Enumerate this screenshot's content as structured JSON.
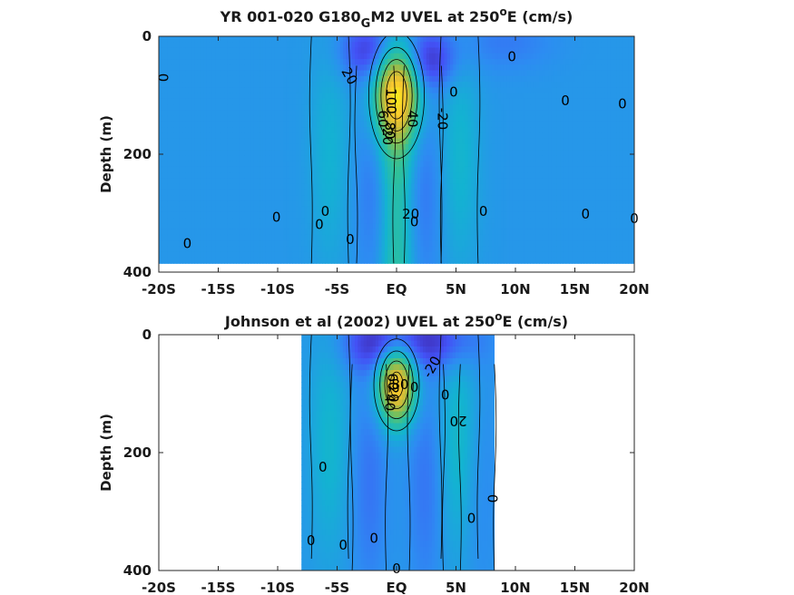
{
  "chart_data": [
    {
      "type": "heatmap",
      "title_main": "YR 001-020 G180",
      "title_sub": "G",
      "title_rest": "M2 UVEL at 250",
      "title_sup": "o",
      "title_end": "E (cm/s)",
      "ylabel": "Depth (m)",
      "xlim": [
        -20,
        20
      ],
      "ylim": [
        400,
        0
      ],
      "x_ticks": [
        -20,
        -15,
        -10,
        -5,
        0,
        5,
        10,
        15,
        20
      ],
      "x_tick_labels": [
        "-20S",
        "-15S",
        "-10S",
        "-5S",
        "EQ",
        "5N",
        "10N",
        "15N",
        "20N"
      ],
      "y_ticks": [
        0,
        200,
        400
      ],
      "y_tick_labels": [
        "0",
        "200",
        "400"
      ],
      "data_x_range": [
        -20,
        20
      ],
      "data_depth_max": 385,
      "contour_levels_cm_s": [
        -20,
        0,
        20,
        40,
        60,
        80,
        100
      ],
      "contour_labels": [
        {
          "x": -19.7,
          "depth": 70,
          "text": "0",
          "rot": 90
        },
        {
          "x": -4.0,
          "depth": 68,
          "text": "20",
          "rot": 60
        },
        {
          "x": 4.8,
          "depth": 95,
          "text": "0",
          "rot": 0
        },
        {
          "x": 9.7,
          "depth": 35,
          "text": "0",
          "rot": 0
        },
        {
          "x": 14.2,
          "depth": 110,
          "text": "0",
          "rot": 0
        },
        {
          "x": 19.0,
          "depth": 115,
          "text": "0",
          "rot": 0
        },
        {
          "x": -0.5,
          "depth": 110,
          "text": "100",
          "rot": 90
        },
        {
          "x": -1.2,
          "depth": 140,
          "text": "60",
          "rot": 90
        },
        {
          "x": -0.6,
          "depth": 160,
          "text": "80",
          "rot": 90
        },
        {
          "x": 1.3,
          "depth": 140,
          "text": "40",
          "rot": 90
        },
        {
          "x": 3.8,
          "depth": 140,
          "text": "-20",
          "rot": 90
        },
        {
          "x": -0.8,
          "depth": 170,
          "text": "20",
          "rot": 90
        },
        {
          "x": 7.3,
          "depth": 298,
          "text": "0",
          "rot": 0
        },
        {
          "x": 15.9,
          "depth": 302,
          "text": "0",
          "rot": 0
        },
        {
          "x": 20.0,
          "depth": 310,
          "text": "0",
          "rot": 0
        },
        {
          "x": -10.1,
          "depth": 308,
          "text": "0",
          "rot": 0
        },
        {
          "x": -6.5,
          "depth": 320,
          "text": "0",
          "rot": 0
        },
        {
          "x": -6.0,
          "depth": 298,
          "text": "0",
          "rot": 0
        },
        {
          "x": -17.6,
          "depth": 352,
          "text": "0",
          "rot": 0
        },
        {
          "x": -3.9,
          "depth": 345,
          "text": "0",
          "rot": 0
        },
        {
          "x": 1.2,
          "depth": 302,
          "text": "20",
          "rot": 0
        },
        {
          "x": 1.5,
          "depth": 315,
          "text": "0",
          "rot": 0
        }
      ],
      "features": [
        {
          "kind": "jet",
          "x": 0,
          "depth": 100,
          "width_deg": 1.3,
          "depth_sigma": 60,
          "speed": 100
        },
        {
          "kind": "jet_deep",
          "x": 0,
          "depth": 280,
          "width_deg": 1.0,
          "speed": 30
        },
        {
          "kind": "westward",
          "x": -2.2,
          "depth": 25,
          "width_deg": 1.8,
          "speed": -30
        },
        {
          "kind": "westward",
          "x": 2.8,
          "depth": 40,
          "width_deg": 1.6,
          "speed": -30
        },
        {
          "kind": "westward",
          "x": 9.0,
          "depth": 10,
          "width_deg": 3.0,
          "speed": -10
        },
        {
          "kind": "westward_band",
          "x": -1.8,
          "depth": 250,
          "width_deg": 1.2,
          "speed": -12
        },
        {
          "kind": "westward_band",
          "x": 2.2,
          "depth": 250,
          "width_deg": 1.2,
          "speed": -12
        },
        {
          "kind": "eastward_band",
          "x": 5.3,
          "depth": 200,
          "width_deg": 1.2,
          "speed": 14
        },
        {
          "kind": "eastward_band",
          "x": -5.6,
          "depth": 200,
          "width_deg": 1.2,
          "speed": 12
        }
      ]
    },
    {
      "type": "heatmap",
      "title_main": "Johnson et al (2002) UVEL at 250",
      "title_sup": "o",
      "title_end": "E (cm/s)",
      "ylabel": "Depth (m)",
      "xlim": [
        -20,
        20
      ],
      "ylim": [
        400,
        0
      ],
      "x_ticks": [
        -20,
        -15,
        -10,
        -5,
        0,
        5,
        10,
        15,
        20
      ],
      "x_tick_labels": [
        "-20S",
        "-15S",
        "-10S",
        "-5S",
        "EQ",
        "5N",
        "10N",
        "15N",
        "20N"
      ],
      "y_ticks": [
        0,
        200,
        400
      ],
      "y_tick_labels": [
        "0",
        "200",
        "400"
      ],
      "data_x_range": [
        -8,
        8.2
      ],
      "data_depth_max": 400,
      "contour_levels_cm_s": [
        -20,
        0,
        20,
        40,
        60,
        80
      ],
      "contour_labels": [
        {
          "x": -0.3,
          "depth": 100,
          "text": "20",
          "rot": 90
        },
        {
          "x": -0.4,
          "depth": 80,
          "text": "60",
          "rot": 90
        },
        {
          "x": 0.3,
          "depth": 85,
          "text": "80",
          "rot": 0
        },
        {
          "x": -0.6,
          "depth": 115,
          "text": "40",
          "rot": 90
        },
        {
          "x": 3.0,
          "depth": 55,
          "text": "-20",
          "rot": -60
        },
        {
          "x": 1.5,
          "depth": 90,
          "text": "0",
          "rot": 0
        },
        {
          "x": 4.1,
          "depth": 103,
          "text": "0",
          "rot": 0
        },
        {
          "x": 5.2,
          "depth": 145,
          "text": "20",
          "rot": 180
        },
        {
          "x": -6.2,
          "depth": 225,
          "text": "0",
          "rot": 0
        },
        {
          "x": 8.0,
          "depth": 278,
          "text": "0",
          "rot": 90
        },
        {
          "x": 6.3,
          "depth": 312,
          "text": "0",
          "rot": 0
        },
        {
          "x": -7.2,
          "depth": 350,
          "text": "0",
          "rot": 0
        },
        {
          "x": -4.5,
          "depth": 358,
          "text": "0",
          "rot": 0
        },
        {
          "x": -1.9,
          "depth": 346,
          "text": "0",
          "rot": 0
        },
        {
          "x": 0.0,
          "depth": 398,
          "text": "0",
          "rot": 0
        }
      ],
      "features": [
        {
          "kind": "jet",
          "x": 0,
          "depth": 85,
          "width_deg": 1.1,
          "depth_sigma": 45,
          "speed": 90
        },
        {
          "kind": "westward",
          "x": -1.8,
          "depth": 15,
          "width_deg": 2.0,
          "speed": -30
        },
        {
          "kind": "westward",
          "x": 3.3,
          "depth": 10,
          "width_deg": 2.5,
          "speed": -30
        },
        {
          "kind": "eastward_band",
          "x": 5.3,
          "depth": 180,
          "width_deg": 1.2,
          "speed": 18
        },
        {
          "kind": "eastward_band",
          "x": -5.6,
          "depth": 180,
          "width_deg": 1.2,
          "speed": 14
        },
        {
          "kind": "westward_band",
          "x": -2.3,
          "depth": 250,
          "width_deg": 1.1,
          "speed": -12
        },
        {
          "kind": "westward_band",
          "x": 2.5,
          "depth": 250,
          "width_deg": 1.1,
          "speed": -12
        },
        {
          "kind": "westward_band",
          "x": 6.8,
          "depth": 250,
          "width_deg": 1.1,
          "speed": -8
        }
      ]
    }
  ],
  "colormap": "parula",
  "colormap_stops": [
    "#3e26a8",
    "#4352f6",
    "#2d8cf2",
    "#13b3d1",
    "#2ec09c",
    "#7cbf58",
    "#c8bb3a",
    "#f9c72f",
    "#f9fb15"
  ],
  "color_range_cm_s": [
    -40,
    100
  ],
  "no_data_color": "#ffffff"
}
